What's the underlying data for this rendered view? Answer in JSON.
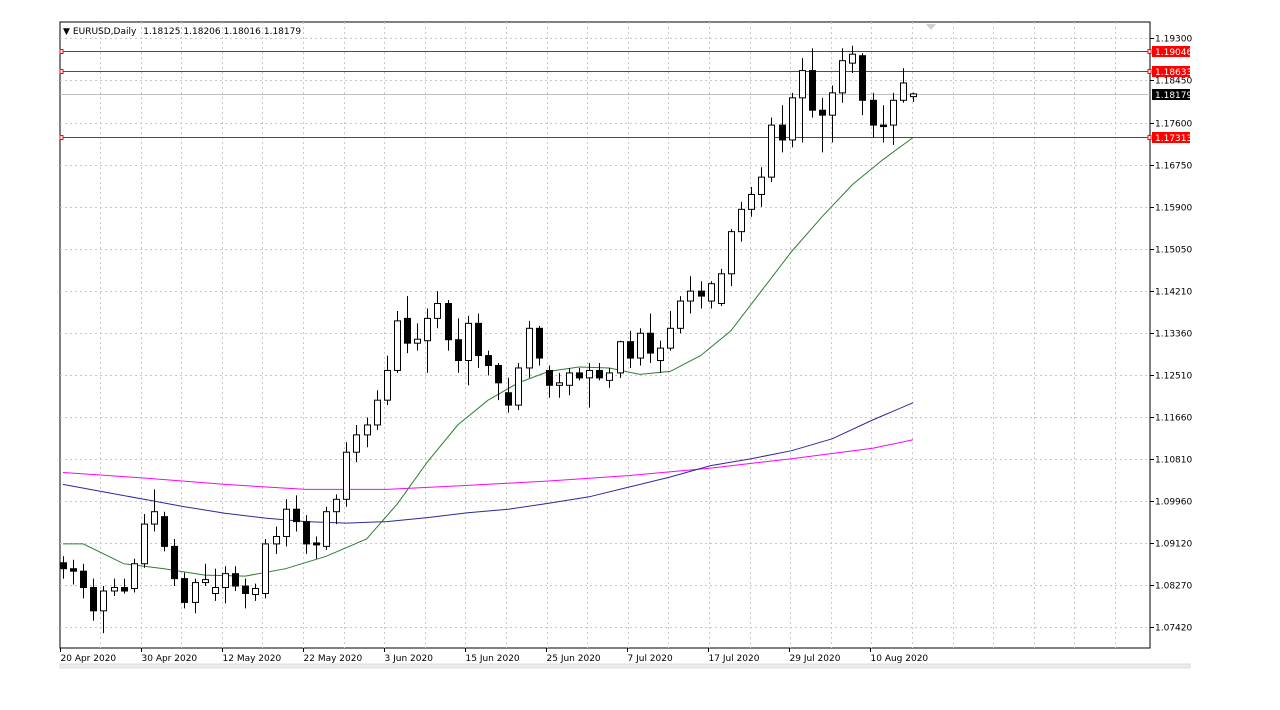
{
  "header": {
    "symbol_label": "EURUSD,Daily",
    "open": "1.18125",
    "high": "1.18206",
    "low": "1.18016",
    "close": "1.18179"
  },
  "colors": {
    "background": "#ffffff",
    "grid": "#c8c8c8",
    "candle_up_fill": "#ffffff",
    "candle_down_fill": "#000000",
    "candle_outline": "#000000",
    "ma_green": "#2e7d32",
    "ma_blue": "#2a2a9a",
    "ma_magenta": "#ff00ff",
    "hline": "#ff0000",
    "current_price_line": "#c0c0c0",
    "current_price_label_bg": "#000000"
  },
  "chart_data": {
    "type": "candlestick",
    "symbol": "EURUSD",
    "timeframe": "Daily",
    "ylim": [
      1.07,
      1.1963
    ],
    "y_ticks": [
      "1.19300",
      "1.18450",
      "1.17600",
      "1.16750",
      "1.15900",
      "1.15050",
      "1.14210",
      "1.13360",
      "1.12510",
      "1.11660",
      "1.10810",
      "1.09960",
      "1.09120",
      "1.08270",
      "1.07420"
    ],
    "x_tick_labels": [
      {
        "label": "20 Apr 2020",
        "index": 0
      },
      {
        "label": "30 Apr 2020",
        "index": 8
      },
      {
        "label": "12 May 2020",
        "index": 16
      },
      {
        "label": "22 May 2020",
        "index": 24
      },
      {
        "label": "3 Jun 2020",
        "index": 32
      },
      {
        "label": "15 Jun 2020",
        "index": 40
      },
      {
        "label": "25 Jun 2020",
        "index": 48
      },
      {
        "label": "7 Jul 2020",
        "index": 56
      },
      {
        "label": "17 Jul 2020",
        "index": 64
      },
      {
        "label": "29 Jul 2020",
        "index": 72
      },
      {
        "label": "10 Aug 2020",
        "index": 80
      }
    ],
    "candles": [
      {
        "o": 1.0872,
        "h": 1.0885,
        "l": 1.084,
        "c": 1.086
      },
      {
        "o": 1.086,
        "h": 1.0878,
        "l": 1.0828,
        "c": 1.0855
      },
      {
        "o": 1.0855,
        "h": 1.087,
        "l": 1.08,
        "c": 1.0822
      },
      {
        "o": 1.0822,
        "h": 1.084,
        "l": 1.0755,
        "c": 1.0775
      },
      {
        "o": 1.0775,
        "h": 1.0825,
        "l": 1.073,
        "c": 1.0815
      },
      {
        "o": 1.0815,
        "h": 1.084,
        "l": 1.0805,
        "c": 1.0822
      },
      {
        "o": 1.0822,
        "h": 1.084,
        "l": 1.081,
        "c": 1.0815
      },
      {
        "o": 1.082,
        "h": 1.088,
        "l": 1.0812,
        "c": 1.087
      },
      {
        "o": 1.087,
        "h": 1.097,
        "l": 1.0862,
        "c": 1.095
      },
      {
        "o": 1.095,
        "h": 1.102,
        "l": 1.0935,
        "c": 1.0975
      },
      {
        "o": 1.0965,
        "h": 1.0975,
        "l": 1.0895,
        "c": 1.0905
      },
      {
        "o": 1.0905,
        "h": 1.092,
        "l": 1.0825,
        "c": 1.084
      },
      {
        "o": 1.084,
        "h": 1.0852,
        "l": 1.078,
        "c": 1.0792
      },
      {
        "o": 1.0792,
        "h": 1.084,
        "l": 1.077,
        "c": 1.0832
      },
      {
        "o": 1.0832,
        "h": 1.087,
        "l": 1.0825,
        "c": 1.0838
      },
      {
        "o": 1.081,
        "h": 1.086,
        "l": 1.0795,
        "c": 1.0822
      },
      {
        "o": 1.0822,
        "h": 1.0865,
        "l": 1.079,
        "c": 1.085
      },
      {
        "o": 1.085,
        "h": 1.0865,
        "l": 1.0815,
        "c": 1.0825
      },
      {
        "o": 1.0825,
        "h": 1.084,
        "l": 1.078,
        "c": 1.081
      },
      {
        "o": 1.0808,
        "h": 1.083,
        "l": 1.0795,
        "c": 1.082
      },
      {
        "o": 1.081,
        "h": 1.092,
        "l": 1.08,
        "c": 1.091
      },
      {
        "o": 1.091,
        "h": 1.0945,
        "l": 1.089,
        "c": 1.0925
      },
      {
        "o": 1.0925,
        "h": 1.1,
        "l": 1.0905,
        "c": 1.098
      },
      {
        "o": 1.098,
        "h": 1.1008,
        "l": 1.0935,
        "c": 1.0955
      },
      {
        "o": 1.0955,
        "h": 1.0968,
        "l": 1.089,
        "c": 1.091
      },
      {
        "o": 1.0912,
        "h": 1.0925,
        "l": 1.088,
        "c": 1.0908
      },
      {
        "o": 1.0905,
        "h": 1.0985,
        "l": 1.0898,
        "c": 1.0975
      },
      {
        "o": 1.0975,
        "h": 1.101,
        "l": 1.095,
        "c": 1.1
      },
      {
        "o": 1.1,
        "h": 1.1115,
        "l": 1.0985,
        "c": 1.1095
      },
      {
        "o": 1.1095,
        "h": 1.115,
        "l": 1.1075,
        "c": 1.113
      },
      {
        "o": 1.113,
        "h": 1.1165,
        "l": 1.1105,
        "c": 1.115
      },
      {
        "o": 1.115,
        "h": 1.122,
        "l": 1.114,
        "c": 1.12
      },
      {
        "o": 1.12,
        "h": 1.129,
        "l": 1.119,
        "c": 1.126
      },
      {
        "o": 1.126,
        "h": 1.138,
        "l": 1.1255,
        "c": 1.136
      },
      {
        "o": 1.1365,
        "h": 1.141,
        "l": 1.1295,
        "c": 1.1315
      },
      {
        "o": 1.1315,
        "h": 1.1355,
        "l": 1.13,
        "c": 1.1323
      },
      {
        "o": 1.132,
        "h": 1.1385,
        "l": 1.1255,
        "c": 1.1365
      },
      {
        "o": 1.1365,
        "h": 1.142,
        "l": 1.1345,
        "c": 1.1395
      },
      {
        "o": 1.1395,
        "h": 1.1402,
        "l": 1.13,
        "c": 1.1322
      },
      {
        "o": 1.1322,
        "h": 1.1365,
        "l": 1.1255,
        "c": 1.128
      },
      {
        "o": 1.128,
        "h": 1.137,
        "l": 1.123,
        "c": 1.1355
      },
      {
        "o": 1.1355,
        "h": 1.1375,
        "l": 1.1265,
        "c": 1.129
      },
      {
        "o": 1.129,
        "h": 1.13,
        "l": 1.125,
        "c": 1.127
      },
      {
        "o": 1.127,
        "h": 1.1275,
        "l": 1.12,
        "c": 1.1235
      },
      {
        "o": 1.1215,
        "h": 1.1245,
        "l": 1.1175,
        "c": 1.119
      },
      {
        "o": 1.119,
        "h": 1.1275,
        "l": 1.118,
        "c": 1.1265
      },
      {
        "o": 1.1265,
        "h": 1.136,
        "l": 1.1245,
        "c": 1.1345
      },
      {
        "o": 1.1345,
        "h": 1.135,
        "l": 1.127,
        "c": 1.1285
      },
      {
        "o": 1.126,
        "h": 1.127,
        "l": 1.1205,
        "c": 1.123
      },
      {
        "o": 1.123,
        "h": 1.1255,
        "l": 1.1205,
        "c": 1.1235
      },
      {
        "o": 1.123,
        "h": 1.1265,
        "l": 1.121,
        "c": 1.1255
      },
      {
        "o": 1.1255,
        "h": 1.1265,
        "l": 1.124,
        "c": 1.1245
      },
      {
        "o": 1.1245,
        "h": 1.1275,
        "l": 1.1185,
        "c": 1.126
      },
      {
        "o": 1.126,
        "h": 1.1275,
        "l": 1.124,
        "c": 1.1245
      },
      {
        "o": 1.124,
        "h": 1.1265,
        "l": 1.1225,
        "c": 1.1255
      },
      {
        "o": 1.1255,
        "h": 1.132,
        "l": 1.1245,
        "c": 1.1318
      },
      {
        "o": 1.1318,
        "h": 1.134,
        "l": 1.1265,
        "c": 1.1285
      },
      {
        "o": 1.1285,
        "h": 1.1345,
        "l": 1.127,
        "c": 1.1335
      },
      {
        "o": 1.1335,
        "h": 1.1375,
        "l": 1.1275,
        "c": 1.1295
      },
      {
        "o": 1.128,
        "h": 1.132,
        "l": 1.1255,
        "c": 1.1305
      },
      {
        "o": 1.1305,
        "h": 1.138,
        "l": 1.13,
        "c": 1.1345
      },
      {
        "o": 1.1345,
        "h": 1.141,
        "l": 1.1335,
        "c": 1.14
      },
      {
        "o": 1.14,
        "h": 1.145,
        "l": 1.1375,
        "c": 1.142
      },
      {
        "o": 1.142,
        "h": 1.144,
        "l": 1.1385,
        "c": 1.141
      },
      {
        "o": 1.14,
        "h": 1.144,
        "l": 1.1385,
        "c": 1.1435
      },
      {
        "o": 1.1395,
        "h": 1.1465,
        "l": 1.139,
        "c": 1.1455
      },
      {
        "o": 1.1455,
        "h": 1.1545,
        "l": 1.143,
        "c": 1.154
      },
      {
        "o": 1.154,
        "h": 1.16,
        "l": 1.152,
        "c": 1.1585
      },
      {
        "o": 1.1585,
        "h": 1.163,
        "l": 1.157,
        "c": 1.1615
      },
      {
        "o": 1.1615,
        "h": 1.167,
        "l": 1.159,
        "c": 1.165
      },
      {
        "o": 1.165,
        "h": 1.177,
        "l": 1.164,
        "c": 1.1755
      },
      {
        "o": 1.1755,
        "h": 1.1795,
        "l": 1.17,
        "c": 1.1725
      },
      {
        "o": 1.1725,
        "h": 1.182,
        "l": 1.171,
        "c": 1.181
      },
      {
        "o": 1.181,
        "h": 1.189,
        "l": 1.172,
        "c": 1.1865
      },
      {
        "o": 1.1865,
        "h": 1.191,
        "l": 1.177,
        "c": 1.1785
      },
      {
        "o": 1.1785,
        "h": 1.181,
        "l": 1.17,
        "c": 1.1775
      },
      {
        "o": 1.1775,
        "h": 1.1835,
        "l": 1.172,
        "c": 1.182
      },
      {
        "o": 1.182,
        "h": 1.191,
        "l": 1.18,
        "c": 1.1885
      },
      {
        "o": 1.188,
        "h": 1.1915,
        "l": 1.186,
        "c": 1.1898
      },
      {
        "o": 1.1895,
        "h": 1.19,
        "l": 1.1775,
        "c": 1.1805
      },
      {
        "o": 1.1805,
        "h": 1.182,
        "l": 1.173,
        "c": 1.1755
      },
      {
        "o": 1.1755,
        "h": 1.1795,
        "l": 1.172,
        "c": 1.1752
      },
      {
        "o": 1.1755,
        "h": 1.182,
        "l": 1.1715,
        "c": 1.1805
      },
      {
        "o": 1.1805,
        "h": 1.187,
        "l": 1.18,
        "c": 1.184
      },
      {
        "o": 1.18125,
        "h": 1.18206,
        "l": 1.18016,
        "c": 1.18179
      }
    ],
    "ma_green": [
      [
        0,
        1.091
      ],
      [
        2,
        1.091
      ],
      [
        6,
        1.087
      ],
      [
        10,
        1.086
      ],
      [
        14,
        1.0847
      ],
      [
        18,
        1.0845
      ],
      [
        22,
        1.086
      ],
      [
        26,
        1.0885
      ],
      [
        30,
        1.092
      ],
      [
        33,
        1.099
      ],
      [
        36,
        1.1075
      ],
      [
        39,
        1.115
      ],
      [
        42,
        1.12
      ],
      [
        45,
        1.1235
      ],
      [
        48,
        1.1258
      ],
      [
        51,
        1.1267
      ],
      [
        54,
        1.1265
      ],
      [
        57,
        1.1252
      ],
      [
        60,
        1.1258
      ],
      [
        63,
        1.129
      ],
      [
        66,
        1.134
      ],
      [
        69,
        1.142
      ],
      [
        72,
        1.15
      ],
      [
        75,
        1.157
      ],
      [
        78,
        1.1635
      ],
      [
        81,
        1.1685
      ],
      [
        84,
        1.173
      ]
    ],
    "ma_blue": [
      [
        0,
        1.103
      ],
      [
        4,
        1.1015
      ],
      [
        8,
        1.1
      ],
      [
        12,
        1.0985
      ],
      [
        16,
        1.0972
      ],
      [
        20,
        1.0962
      ],
      [
        24,
        1.0955
      ],
      [
        28,
        1.0952
      ],
      [
        32,
        1.0955
      ],
      [
        36,
        1.0963
      ],
      [
        40,
        1.0973
      ],
      [
        44,
        1.098
      ],
      [
        48,
        1.0992
      ],
      [
        52,
        1.1005
      ],
      [
        56,
        1.1025
      ],
      [
        60,
        1.1045
      ],
      [
        64,
        1.1068
      ],
      [
        68,
        1.1082
      ],
      [
        72,
        1.1098
      ],
      [
        76,
        1.1122
      ],
      [
        80,
        1.116
      ],
      [
        84,
        1.1195
      ]
    ],
    "ma_magenta": [
      [
        0,
        1.1054
      ],
      [
        8,
        1.1043
      ],
      [
        16,
        1.103
      ],
      [
        24,
        1.102
      ],
      [
        32,
        1.102
      ],
      [
        40,
        1.1028
      ],
      [
        48,
        1.1037
      ],
      [
        56,
        1.1048
      ],
      [
        64,
        1.1063
      ],
      [
        72,
        1.1082
      ],
      [
        80,
        1.1103
      ],
      [
        84,
        1.112
      ]
    ],
    "horizontal_lines": [
      {
        "label": "1.19046",
        "value": 1.19046,
        "color": "#ff0000"
      },
      {
        "label": "1.18633",
        "value": 1.18633,
        "color": "#ff0000"
      },
      {
        "label": "1.17313",
        "value": 1.17313,
        "color": "#ff0000"
      }
    ],
    "current_price": {
      "label": "1.18179",
      "value": 1.18179
    },
    "grid": true
  }
}
